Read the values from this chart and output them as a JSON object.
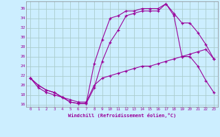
{
  "xlabel": "Windchill (Refroidissement éolien,°C)",
  "bg_color": "#cceeff",
  "grid_color": "#aacccc",
  "line_color": "#990099",
  "ylim": [
    15.5,
    37.5
  ],
  "xlim": [
    -0.5,
    23.5
  ],
  "yticks": [
    16,
    18,
    20,
    22,
    24,
    26,
    28,
    30,
    32,
    34,
    36
  ],
  "xticks": [
    0,
    1,
    2,
    3,
    4,
    5,
    6,
    7,
    8,
    9,
    10,
    11,
    12,
    13,
    14,
    15,
    16,
    17,
    18,
    19,
    20,
    21,
    22,
    23
  ],
  "line1_x": [
    0,
    1,
    2,
    3,
    4,
    5,
    6,
    7,
    8,
    9,
    10,
    11,
    12,
    13,
    14,
    15,
    16,
    17,
    18,
    19,
    20,
    21,
    22,
    23
  ],
  "line1_y": [
    21.5,
    20.0,
    19.0,
    18.5,
    17.5,
    16.5,
    16.2,
    16.2,
    19.5,
    25.0,
    29.0,
    31.5,
    34.5,
    35.0,
    35.5,
    35.5,
    35.5,
    37.0,
    35.0,
    33.0,
    33.0,
    31.0,
    28.5,
    25.5
  ],
  "line2_x": [
    0,
    1,
    2,
    3,
    4,
    5,
    6,
    7,
    8,
    9,
    10,
    11,
    12,
    13,
    14,
    15,
    16,
    17,
    18,
    19,
    20,
    21,
    22,
    23
  ],
  "line2_y": [
    21.5,
    20.0,
    19.0,
    18.5,
    17.5,
    16.5,
    16.2,
    16.2,
    24.5,
    29.5,
    34.0,
    34.5,
    35.5,
    35.5,
    36.0,
    36.0,
    36.0,
    37.0,
    34.5,
    26.0,
    26.0,
    24.0,
    21.0,
    18.5
  ],
  "line3_x": [
    0,
    1,
    2,
    3,
    4,
    5,
    6,
    7,
    8,
    9,
    10,
    11,
    12,
    13,
    14,
    15,
    16,
    17,
    18,
    19,
    20,
    21,
    22,
    23
  ],
  "line3_y": [
    21.5,
    19.5,
    18.5,
    18.0,
    17.5,
    17.0,
    16.5,
    16.5,
    20.0,
    21.5,
    22.0,
    22.5,
    23.0,
    23.5,
    24.0,
    24.0,
    24.5,
    25.0,
    25.5,
    26.0,
    26.5,
    27.0,
    27.5,
    25.5
  ]
}
